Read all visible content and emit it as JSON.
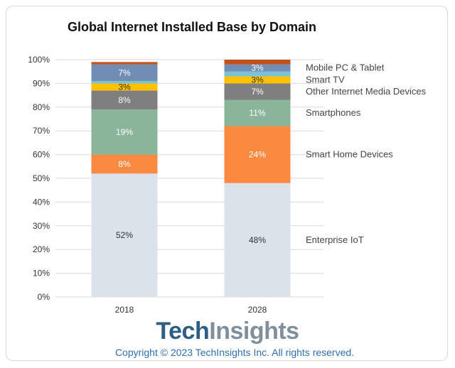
{
  "chart_data": {
    "type": "bar",
    "stacked": true,
    "title": "Global Internet Installed Base by Domain",
    "categories": [
      "2018",
      "2028"
    ],
    "ylim": [
      0,
      100
    ],
    "yticks": [
      "0%",
      "10%",
      "20%",
      "30%",
      "40%",
      "50%",
      "60%",
      "70%",
      "80%",
      "90%",
      "100%"
    ],
    "grid": true,
    "legend_placement": "right",
    "series": [
      {
        "name": "Enterprise IoT",
        "values": [
          52,
          48
        ],
        "labels": [
          "52%",
          "48%"
        ],
        "color": "#dbe2ea",
        "label_color": "#333333"
      },
      {
        "name": "Smart Home Devices",
        "values": [
          8,
          24
        ],
        "labels": [
          "8%",
          "24%"
        ],
        "color": "#fb8a41",
        "label_color": "#ffffff"
      },
      {
        "name": "Smartphones",
        "values": [
          19,
          11
        ],
        "labels": [
          "19%",
          "11%"
        ],
        "color": "#8ab59b",
        "label_color": "#ffffff"
      },
      {
        "name": "Other Internet Media Devices",
        "values": [
          8,
          7
        ],
        "labels": [
          "8%",
          "7%"
        ],
        "color": "#7f7f7f",
        "label_color": "#ffffff"
      },
      {
        "name": "Smart TV",
        "values": [
          3,
          3
        ],
        "labels": [
          "3%",
          "3%"
        ],
        "color": "#ffc000",
        "label_color": "#333333"
      },
      {
        "name": "",
        "values": [
          1,
          2
        ],
        "labels": [
          "",
          ""
        ],
        "color": "#77c2d4",
        "label_color": "#ffffff"
      },
      {
        "name": "Mobile PC & Tablet",
        "values": [
          7,
          3
        ],
        "labels": [
          "7%",
          "3%"
        ],
        "color": "#6f8db5",
        "label_color": "#ffffff"
      },
      {
        "name": "",
        "values": [
          1,
          2
        ],
        "labels": [
          "",
          ""
        ],
        "color": "#c0501c",
        "label_color": "#ffffff"
      }
    ]
  },
  "footer": {
    "logo_part1": "Tech",
    "logo_part2": "Insights",
    "copyright": "Copyright © 2023 TechInsights Inc.  All rights reserved."
  }
}
